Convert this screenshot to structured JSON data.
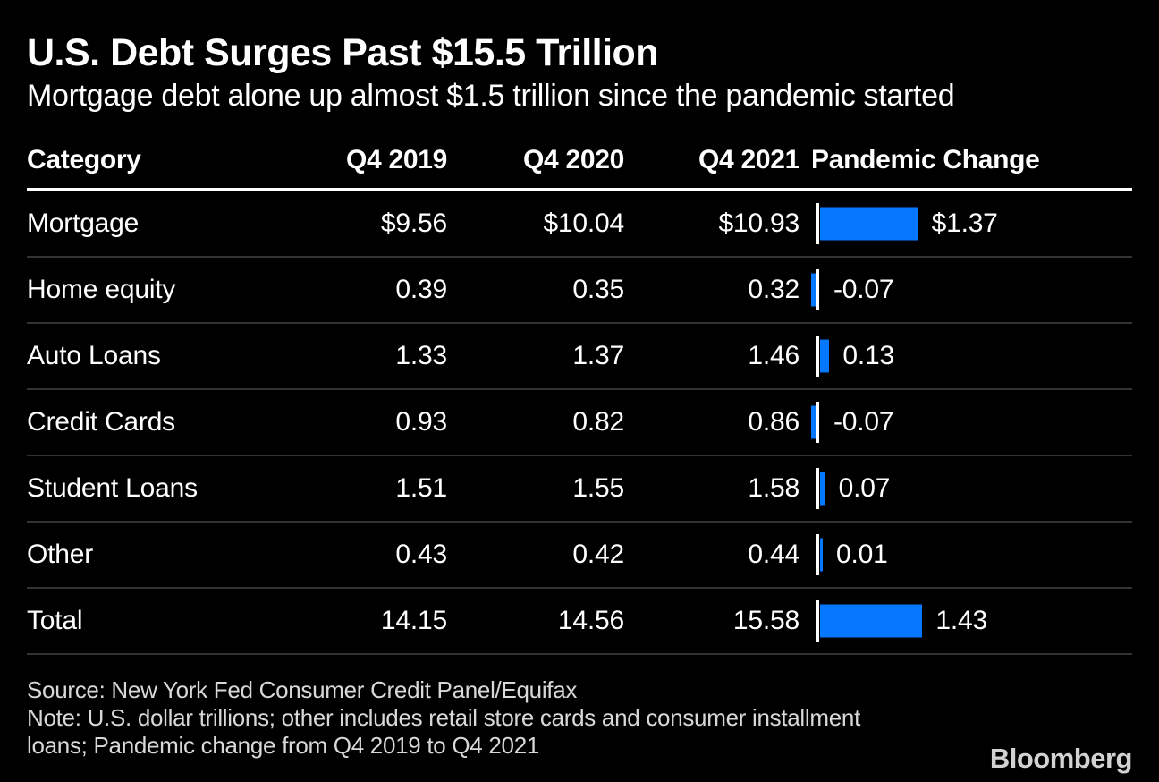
{
  "chart_data": {
    "type": "table",
    "title": "U.S. Debt Surges Past $15.5 Trillion",
    "subtitle": "Mortgage debt alone up almost $1.5 trillion since the pandemic started",
    "columns": [
      "Category",
      "Q4 2019",
      "Q4 2020",
      "Q4 2021",
      "Pandemic Change"
    ],
    "rows": [
      {
        "category": "Mortgage",
        "q4_2019": "$9.56",
        "q4_2020": "$10.04",
        "q4_2021": "$10.93",
        "change": 1.37,
        "change_label": "$1.37"
      },
      {
        "category": "Home equity",
        "q4_2019": "0.39",
        "q4_2020": "0.35",
        "q4_2021": "0.32",
        "change": -0.07,
        "change_label": "-0.07"
      },
      {
        "category": "Auto Loans",
        "q4_2019": "1.33",
        "q4_2020": "1.37",
        "q4_2021": "1.46",
        "change": 0.13,
        "change_label": "0.13"
      },
      {
        "category": "Credit Cards",
        "q4_2019": "0.93",
        "q4_2020": "0.82",
        "q4_2021": "0.86",
        "change": -0.07,
        "change_label": "-0.07"
      },
      {
        "category": "Student Loans",
        "q4_2019": "1.51",
        "q4_2020": "1.55",
        "q4_2021": "1.58",
        "change": 0.07,
        "change_label": "0.07"
      },
      {
        "category": "Other",
        "q4_2019": "0.43",
        "q4_2020": "0.42",
        "q4_2021": "0.44",
        "change": 0.01,
        "change_label": "0.01"
      },
      {
        "category": "Total",
        "q4_2019": "14.15",
        "q4_2020": "14.56",
        "q4_2021": "15.58",
        "change": 1.43,
        "change_label": "1.43"
      }
    ],
    "source": "Source: New York Fed Consumer Credit Panel/Equifax",
    "note": "Note: U.S. dollar trillions; other includes retail store cards and consumer installment loans; Pandemic change from Q4 2019 to Q4 2021",
    "brand": "Bloomberg",
    "colors": {
      "background": "#000000",
      "bar": "#0677ff",
      "text": "#ffffff",
      "footer_text": "#d8d8d8",
      "separator": "#333333",
      "header_rule": "#ffffff"
    }
  }
}
